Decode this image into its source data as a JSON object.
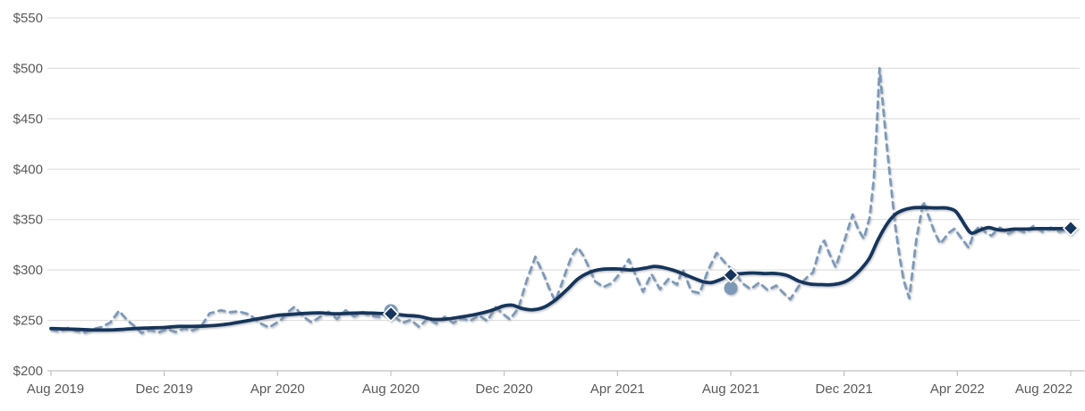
{
  "chart_data": {
    "type": "line",
    "title": "",
    "currency_prefix": "$",
    "y_axis": {
      "min": 200,
      "max": 550,
      "step": 50,
      "ticks": [
        {
          "value": 550,
          "label": "$550"
        },
        {
          "value": 500,
          "label": "$500"
        },
        {
          "value": 450,
          "label": "$450"
        },
        {
          "value": 400,
          "label": "$400"
        },
        {
          "value": 350,
          "label": "$350"
        },
        {
          "value": 300,
          "label": "$300"
        },
        {
          "value": 250,
          "label": "$250"
        },
        {
          "value": 200,
          "label": "$200"
        }
      ]
    },
    "x_axis": {
      "months_span": 36,
      "ticks": [
        {
          "month": 0,
          "label": "Aug 2019"
        },
        {
          "month": 4,
          "label": "Dec 2019"
        },
        {
          "month": 8,
          "label": "Apr 2020"
        },
        {
          "month": 12,
          "label": "Aug 2020"
        },
        {
          "month": 16,
          "label": "Dec 2020"
        },
        {
          "month": 20,
          "label": "Apr 2021"
        },
        {
          "month": 24,
          "label": "Aug 2021"
        },
        {
          "month": 28,
          "label": "Dec 2021"
        },
        {
          "month": 32,
          "label": "Apr 2022"
        },
        {
          "month": 36,
          "label": "Aug 2022"
        }
      ]
    },
    "grid": true,
    "legend": "none",
    "series": [
      {
        "name": "price-volatile-dashed",
        "style": "dashed",
        "color": "#7e99b7",
        "points": [
          [
            0,
            241
          ],
          [
            0.3,
            239
          ],
          [
            0.6,
            242.5
          ],
          [
            0.9,
            239.5
          ],
          [
            1.2,
            238
          ],
          [
            1.5,
            241.5
          ],
          [
            1.8,
            243.5
          ],
          [
            2.1,
            248
          ],
          [
            2.4,
            259.5
          ],
          [
            2.7,
            250
          ],
          [
            3,
            243
          ],
          [
            3.2,
            237.5
          ],
          [
            3.5,
            240.5
          ],
          [
            3.8,
            238
          ],
          [
            4.1,
            241.5
          ],
          [
            4.4,
            238.5
          ],
          [
            4.7,
            242
          ],
          [
            5,
            240
          ],
          [
            5.3,
            244
          ],
          [
            5.6,
            257
          ],
          [
            6,
            260
          ],
          [
            6.3,
            258
          ],
          [
            6.6,
            259
          ],
          [
            7,
            256
          ],
          [
            7.4,
            247
          ],
          [
            7.7,
            243
          ],
          [
            8.1,
            250
          ],
          [
            8.4,
            259
          ],
          [
            8.6,
            263.5
          ],
          [
            8.9,
            254
          ],
          [
            9.2,
            248
          ],
          [
            9.5,
            253.5
          ],
          [
            9.8,
            258.5
          ],
          [
            10.1,
            251.5
          ],
          [
            10.4,
            260
          ],
          [
            10.7,
            254
          ],
          [
            11,
            258
          ],
          [
            11.3,
            254.5
          ],
          [
            11.6,
            253.5
          ],
          [
            12,
            257
          ],
          [
            12.4,
            247.5
          ],
          [
            12.7,
            250.5
          ],
          [
            13,
            243.5
          ],
          [
            13.3,
            252
          ],
          [
            13.6,
            247
          ],
          [
            13.9,
            253.5
          ],
          [
            14.2,
            247.5
          ],
          [
            14.5,
            252
          ],
          [
            14.8,
            249.5
          ],
          [
            15.1,
            255
          ],
          [
            15.4,
            249.5
          ],
          [
            15.7,
            263
          ],
          [
            16,
            255.5
          ],
          [
            16.2,
            251
          ],
          [
            16.5,
            262
          ],
          [
            16.8,
            290
          ],
          [
            17.1,
            313
          ],
          [
            17.4,
            295
          ],
          [
            17.6,
            281
          ],
          [
            17.8,
            269
          ],
          [
            18,
            284
          ],
          [
            18.2,
            300
          ],
          [
            18.4,
            315
          ],
          [
            18.6,
            322.5
          ],
          [
            18.8,
            314
          ],
          [
            19,
            302
          ],
          [
            19.2,
            289
          ],
          [
            19.5,
            283
          ],
          [
            19.8,
            287
          ],
          [
            20.1,
            297
          ],
          [
            20.4,
            310.5
          ],
          [
            20.7,
            291
          ],
          [
            20.9,
            278.5
          ],
          [
            21.2,
            296
          ],
          [
            21.5,
            281
          ],
          [
            21.8,
            291
          ],
          [
            22.1,
            285.5
          ],
          [
            22.3,
            301
          ],
          [
            22.6,
            279
          ],
          [
            22.9,
            277
          ],
          [
            23.2,
            300
          ],
          [
            23.5,
            317
          ],
          [
            23.8,
            307
          ],
          [
            24.1,
            299
          ],
          [
            24.4,
            287
          ],
          [
            24.7,
            281
          ],
          [
            25,
            287.5
          ],
          [
            25.3,
            280
          ],
          [
            25.6,
            284.5
          ],
          [
            25.9,
            276
          ],
          [
            26.1,
            271
          ],
          [
            26.4,
            284
          ],
          [
            26.7,
            293
          ],
          [
            26.9,
            297.5
          ],
          [
            27.2,
            326
          ],
          [
            27.3,
            329
          ],
          [
            27.5,
            315
          ],
          [
            27.7,
            303
          ],
          [
            28,
            328
          ],
          [
            28.2,
            346
          ],
          [
            28.3,
            355
          ],
          [
            28.5,
            340
          ],
          [
            28.7,
            331
          ],
          [
            28.9,
            352
          ],
          [
            29.05,
            390
          ],
          [
            29.15,
            440
          ],
          [
            29.25,
            500
          ],
          [
            29.35,
            470
          ],
          [
            29.5,
            425
          ],
          [
            29.65,
            385
          ],
          [
            29.8,
            345
          ],
          [
            29.95,
            315
          ],
          [
            30.1,
            290
          ],
          [
            30.3,
            272
          ],
          [
            30.55,
            330
          ],
          [
            30.8,
            368
          ],
          [
            31,
            352
          ],
          [
            31.2,
            337
          ],
          [
            31.4,
            326
          ],
          [
            31.7,
            337
          ],
          [
            31.9,
            341
          ],
          [
            32.1,
            333
          ],
          [
            32.4,
            322
          ],
          [
            32.6,
            338
          ],
          [
            32.8,
            344
          ],
          [
            33,
            337
          ],
          [
            33.2,
            334
          ],
          [
            33.5,
            342
          ],
          [
            33.8,
            336
          ],
          [
            34.1,
            340.5
          ],
          [
            34.4,
            337
          ],
          [
            34.7,
            344
          ],
          [
            35,
            338
          ],
          [
            35.3,
            342
          ],
          [
            35.6,
            338
          ],
          [
            36,
            341
          ]
        ]
      },
      {
        "name": "price-trend-solid",
        "style": "solid",
        "color": "#16365c",
        "points": [
          [
            0,
            242
          ],
          [
            0.5,
            241.5
          ],
          [
            1,
            241
          ],
          [
            1.5,
            240.5
          ],
          [
            2,
            240.5
          ],
          [
            2.5,
            241
          ],
          [
            3,
            242
          ],
          [
            3.5,
            242.5
          ],
          [
            4,
            243
          ],
          [
            4.5,
            244
          ],
          [
            5,
            244
          ],
          [
            5.5,
            244.5
          ],
          [
            6,
            245.5
          ],
          [
            6.5,
            247.5
          ],
          [
            7,
            250
          ],
          [
            7.5,
            252.5
          ],
          [
            8,
            255
          ],
          [
            8.5,
            256
          ],
          [
            9,
            257
          ],
          [
            9.5,
            257.5
          ],
          [
            10,
            256.5
          ],
          [
            10.5,
            257
          ],
          [
            11,
            257.5
          ],
          [
            11.5,
            257
          ],
          [
            12,
            256.5
          ],
          [
            12.5,
            255
          ],
          [
            13,
            254
          ],
          [
            13.5,
            251
          ],
          [
            14,
            251.5
          ],
          [
            14.5,
            253.5
          ],
          [
            15,
            256
          ],
          [
            15.5,
            259.5
          ],
          [
            15.8,
            262.5
          ],
          [
            16,
            264.5
          ],
          [
            16.3,
            265
          ],
          [
            16.6,
            262
          ],
          [
            17,
            260.5
          ],
          [
            17.4,
            263
          ],
          [
            17.8,
            270
          ],
          [
            18.2,
            280
          ],
          [
            18.6,
            291
          ],
          [
            19,
            297.5
          ],
          [
            19.4,
            300.5
          ],
          [
            20,
            301
          ],
          [
            20.5,
            300
          ],
          [
            21,
            302
          ],
          [
            21.3,
            303.5
          ],
          [
            21.6,
            302.5
          ],
          [
            22,
            299.5
          ],
          [
            22.5,
            294
          ],
          [
            23,
            288.5
          ],
          [
            23.3,
            287.5
          ],
          [
            23.6,
            290
          ],
          [
            24,
            295
          ],
          [
            24.4,
            296.5
          ],
          [
            24.8,
            297
          ],
          [
            25.2,
            296.5
          ],
          [
            25.6,
            296.5
          ],
          [
            26,
            294.5
          ],
          [
            26.4,
            289
          ],
          [
            26.8,
            286
          ],
          [
            27.2,
            285.5
          ],
          [
            27.6,
            285.5
          ],
          [
            28,
            288
          ],
          [
            28.3,
            293
          ],
          [
            28.6,
            301
          ],
          [
            28.9,
            312
          ],
          [
            29.2,
            330
          ],
          [
            29.5,
            345
          ],
          [
            29.8,
            355
          ],
          [
            30.1,
            359.5
          ],
          [
            30.4,
            361.5
          ],
          [
            30.8,
            362
          ],
          [
            31.2,
            361.5
          ],
          [
            31.6,
            361.5
          ],
          [
            31.9,
            359
          ],
          [
            32.1,
            352
          ],
          [
            32.3,
            343
          ],
          [
            32.5,
            336.5
          ],
          [
            32.8,
            339.5
          ],
          [
            33.1,
            342
          ],
          [
            33.4,
            340
          ],
          [
            33.7,
            339.5
          ],
          [
            34,
            340.5
          ],
          [
            34.4,
            340.5
          ],
          [
            34.8,
            341
          ],
          [
            35.2,
            341
          ],
          [
            35.6,
            341
          ],
          [
            36,
            341.5
          ]
        ]
      }
    ],
    "markers": [
      {
        "shape": "circle",
        "color": "#7e99b7",
        "month": 12,
        "value": 259.5
      },
      {
        "shape": "circle",
        "color": "#7e99b7",
        "month": 24,
        "value": 282
      },
      {
        "shape": "diamond",
        "color": "#16365c",
        "month": 12,
        "value": 256.5
      },
      {
        "shape": "diamond",
        "color": "#16365c",
        "month": 24,
        "value": 295
      },
      {
        "shape": "diamond",
        "color": "#16365c",
        "month": 36,
        "value": 341.5
      }
    ],
    "colors": {
      "gridline": "#d9d9d9",
      "axis_line": "#c0c0c0",
      "axis_text": "#595959",
      "background": "#ffffff",
      "solid_line": "#16365c",
      "dashed_line": "#7e99b7"
    }
  }
}
